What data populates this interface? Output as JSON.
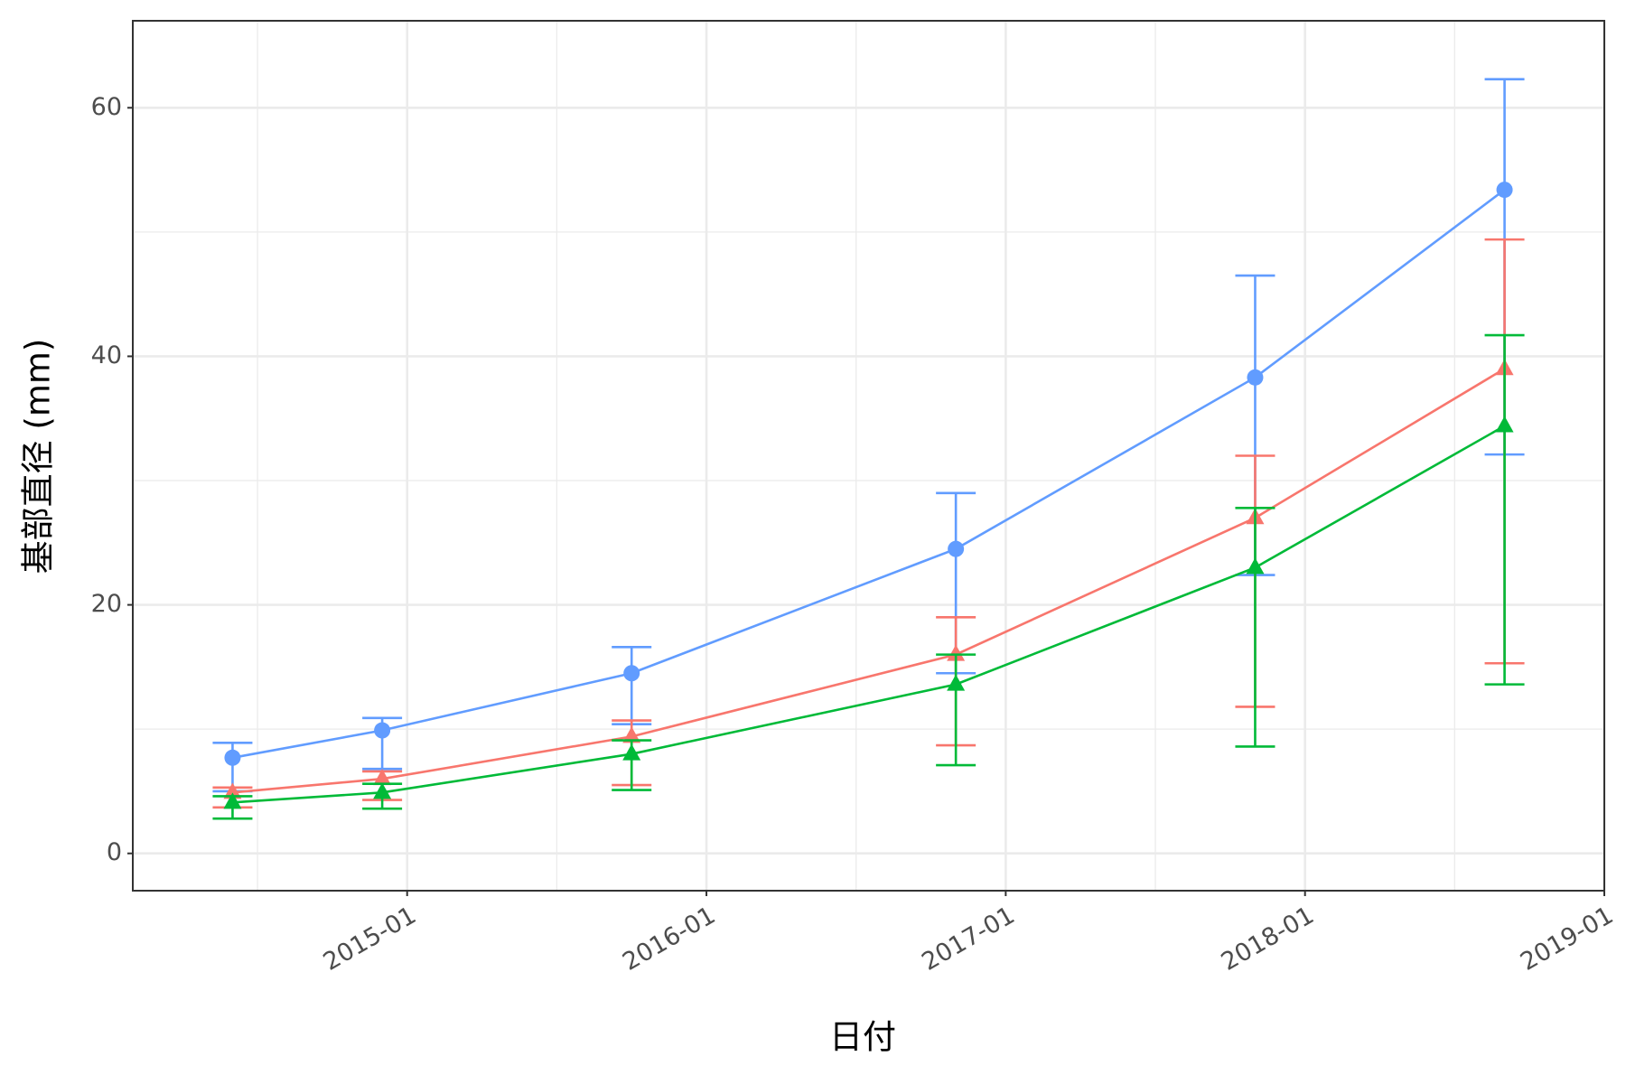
{
  "chart_data": {
    "type": "line",
    "xlabel": "日付",
    "ylabel": "基部直径 (mm)",
    "x": [
      "2014-06",
      "2014-12",
      "2015-10",
      "2016-11",
      "2017-11",
      "2018-09"
    ],
    "xlim": [
      "2014-02",
      "2019-01"
    ],
    "xticks": [
      "2015-01",
      "2016-01",
      "2017-01",
      "2018-01",
      "2019-01"
    ],
    "x_minor_ticks": [
      "2014-07",
      "2015-07",
      "2016-07",
      "2017-07",
      "2018-07"
    ],
    "ylim": [
      -3,
      67
    ],
    "yticks": [
      0,
      20,
      40,
      60
    ],
    "y_minor_ticks": [
      10,
      30,
      50
    ],
    "grid": true,
    "series": [
      {
        "color": "#619cff",
        "marker": "circle",
        "values": [
          7.7,
          9.9,
          14.5,
          24.5,
          38.3,
          53.4
        ],
        "lower": [
          5.0,
          6.8,
          10.4,
          14.5,
          22.4,
          32.1
        ],
        "upper": [
          8.9,
          10.9,
          16.6,
          29.0,
          46.5,
          62.3
        ]
      },
      {
        "color": "#f8766d",
        "marker": "triangle",
        "values": [
          4.9,
          6.0,
          9.4,
          16.0,
          27.0,
          39.0
        ],
        "lower": [
          3.7,
          4.3,
          5.5,
          8.7,
          11.8,
          15.3
        ],
        "upper": [
          5.3,
          6.6,
          10.7,
          19.0,
          32.0,
          49.4
        ]
      },
      {
        "color": "#00ba38",
        "marker": "triangle",
        "values": [
          4.1,
          4.9,
          8.0,
          13.6,
          23.0,
          34.4
        ],
        "lower": [
          2.8,
          3.6,
          5.1,
          7.1,
          8.6,
          13.6
        ],
        "upper": [
          4.6,
          5.6,
          9.1,
          16.0,
          27.8,
          41.7
        ]
      }
    ]
  }
}
